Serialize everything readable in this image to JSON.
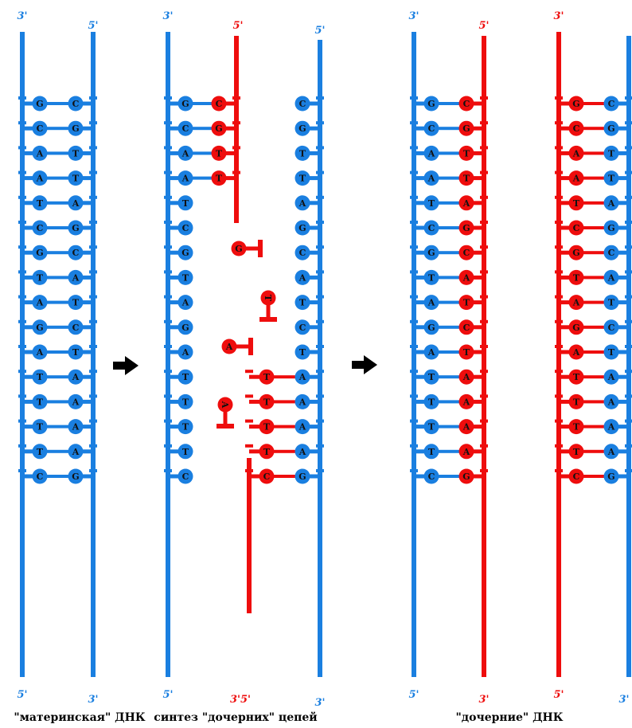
{
  "colors": {
    "template": "#1a7fe0",
    "daughter": "#ee0d0d",
    "letter": "#111111",
    "arrow": "#000000"
  },
  "parent_sequence": [
    "G",
    "C",
    "A",
    "A",
    "T",
    "C",
    "G",
    "T",
    "A",
    "G",
    "A",
    "T",
    "T",
    "T",
    "T",
    "C"
  ],
  "complement": {
    "A": "T",
    "T": "A",
    "G": "C",
    "C": "G"
  },
  "labels": {
    "three_prime": "3'",
    "five_prime": "5'",
    "combined": "3'5'"
  },
  "captions": {
    "parental": "\"материнская\" ДНК",
    "synthesis": "синтез \"дочерних\" цепей",
    "daughter": "\"дочерние\" ДНК"
  },
  "free_nucleotides": [
    "G",
    "T",
    "A",
    "A"
  ],
  "icons": [
    "right-arrow-icon",
    "right-arrow-icon"
  ]
}
